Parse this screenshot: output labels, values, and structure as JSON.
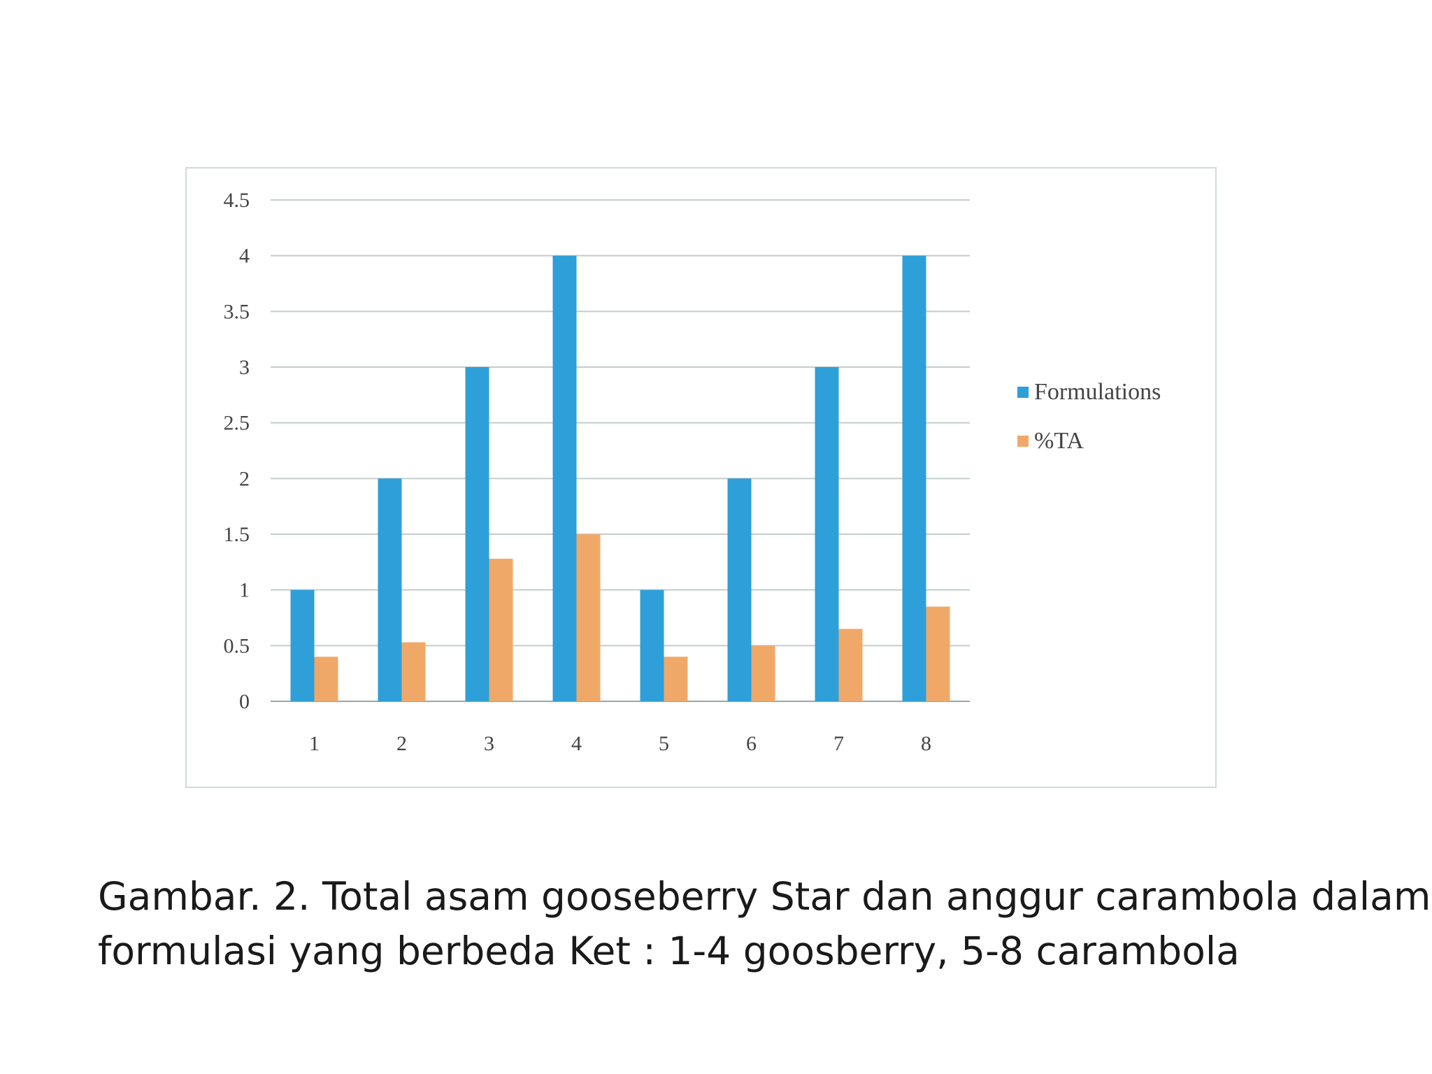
{
  "chart_data": {
    "type": "bar",
    "categories": [
      "1",
      "2",
      "3",
      "4",
      "5",
      "6",
      "7",
      "8"
    ],
    "series": [
      {
        "name": "Formulations",
        "values": [
          1,
          2,
          3,
          4,
          1,
          2,
          3,
          4
        ],
        "color": "#2e9fd8"
      },
      {
        "name": "%TA",
        "values": [
          0.4,
          0.53,
          1.28,
          1.5,
          0.4,
          0.5,
          0.65,
          0.85
        ],
        "color": "#f0a868"
      }
    ],
    "yticks": [
      "0",
      "0.5",
      "1",
      "1.5",
      "2",
      "2.5",
      "3",
      "3.5",
      "4",
      "4.5"
    ],
    "ylim": [
      0,
      4.5
    ],
    "grid": true,
    "legend_position": "right",
    "title": "",
    "xlabel": "",
    "ylabel": ""
  },
  "caption": {
    "line1": "Gambar. 2. Total asam gooseberry Star dan anggur carambola dalam",
    "line2": "formulasi yang berbeda Ket : 1-4 goosberry, 5-8 carambola"
  }
}
